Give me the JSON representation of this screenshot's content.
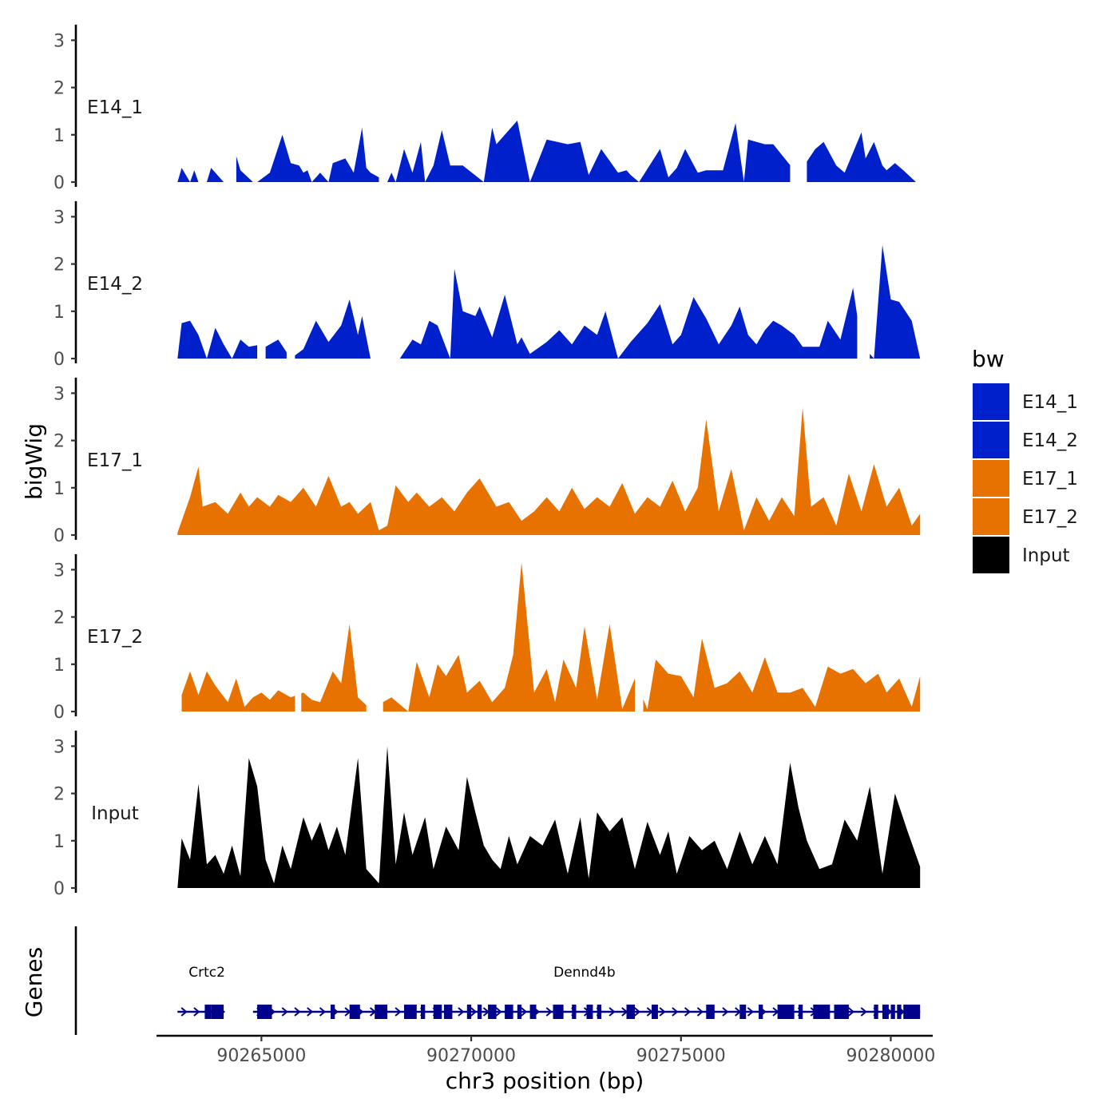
{
  "chart_data": {
    "type": "area",
    "ylabel": "bigWig",
    "xlabel": "chr3 position (bp)",
    "genes_label": "Genes",
    "xlim": [
      90262500,
      90281000
    ],
    "x_ticks": [
      90265000,
      90270000,
      90275000,
      90280000
    ],
    "x_tick_labels": [
      "90265000",
      "90270000",
      "90275000",
      "90280000"
    ],
    "ylim": [
      0,
      3.3
    ],
    "y_ticks": [
      0,
      1,
      2,
      3
    ],
    "y_tick_labels": [
      "0",
      "1",
      "2",
      "3"
    ],
    "legend": {
      "title": "bw",
      "entries": [
        {
          "name": "E14_1",
          "color": "#0020CC"
        },
        {
          "name": "E14_2",
          "color": "#0020CC"
        },
        {
          "name": "E17_1",
          "color": "#E87200"
        },
        {
          "name": "E17_2",
          "color": "#E87200"
        },
        {
          "name": "Input",
          "color": "#000000"
        }
      ]
    },
    "series": [
      {
        "name": "E14_1",
        "color": "#0020CC",
        "x": [
          90263000,
          90263100,
          90263300,
          90263400,
          90263500,
          90263700,
          90263800,
          90264100,
          90264300,
          90264500,
          90264800,
          90264900,
          90265200,
          90265500,
          90265700,
          90265900,
          90266000,
          90266100,
          90266200,
          90266300,
          90266400,
          90266600,
          90266700,
          90267000,
          90267200,
          90267400,
          90267500,
          90267600,
          90268000,
          90268100,
          90268200,
          90268400,
          90268600,
          90268800,
          90268900,
          90269100,
          90269300,
          90269500,
          90269800,
          90270300,
          90270500,
          90270600,
          90271100,
          90271400,
          90271800,
          90272300,
          90272600,
          90272800,
          90273100,
          90273500,
          90273700,
          90273800,
          90274000,
          90274500,
          90274700,
          90274900,
          90275100,
          90275400,
          90275600,
          90276000,
          90276300,
          90276500,
          90276600,
          90277000,
          90277200,
          90277700,
          90277900,
          90278200,
          90278400,
          90278700,
          90278900,
          90279300,
          90279400,
          90279600,
          90279800,
          90279900,
          90280100,
          90280300,
          90280600,
          90280800
        ],
        "y": [
          0,
          0.3,
          0,
          0.25,
          0,
          0,
          0.3,
          0,
          0.85,
          0.25,
          0,
          0,
          0.2,
          1.0,
          0.4,
          0.35,
          0.2,
          0.25,
          0,
          0.1,
          0.2,
          0,
          0.4,
          0.5,
          0.2,
          1.15,
          0.3,
          0.2,
          0,
          0.2,
          0,
          0.7,
          0.2,
          0.85,
          0,
          0.35,
          1.1,
          0.35,
          0.35,
          0,
          1.15,
          0.8,
          1.3,
          0,
          0.9,
          0.8,
          0.85,
          0.15,
          0.7,
          0.2,
          0.25,
          0.15,
          0,
          0.7,
          0.1,
          0.3,
          0.7,
          0.2,
          0.25,
          0.25,
          1.25,
          0,
          0.9,
          0.8,
          0.8,
          0.25,
          0.3,
          0.7,
          0.85,
          0.35,
          0.2,
          1.05,
          0.5,
          0.85,
          0.35,
          0.25,
          0.4,
          0.25,
          0,
          0
        ],
        "gaps": [
          [
            90264100,
            90264400
          ],
          [
            90267800,
            90268000
          ],
          [
            90277600,
            90278000
          ]
        ]
      },
      {
        "name": "E14_2",
        "color": "#0020CC",
        "x": [
          90263000,
          90263100,
          90263300,
          90263500,
          90263700,
          90263900,
          90264100,
          90264300,
          90264500,
          90264700,
          90265000,
          90265100,
          90265400,
          90265700,
          90266000,
          90266300,
          90266600,
          90266900,
          90267100,
          90267300,
          90267400,
          90267600,
          90268300,
          90268600,
          90268800,
          90269000,
          90269200,
          90269500,
          90269600,
          90269800,
          90270100,
          90270200,
          90270500,
          90270800,
          90271100,
          90271200,
          90271400,
          90271800,
          90272100,
          90272400,
          90272700,
          90273000,
          90273200,
          90273500,
          90273800,
          90274200,
          90274500,
          90274800,
          90275000,
          90275300,
          90275600,
          90275900,
          90276200,
          90276400,
          90276600,
          90276800,
          90277000,
          90277200,
          90277400,
          90277700,
          90277900,
          90278300,
          90278500,
          90278800,
          90279100,
          90279300,
          90279600,
          90279800,
          90280000,
          90280200,
          90280500,
          90280700
        ],
        "y": [
          0,
          0.75,
          0.8,
          0.5,
          0,
          0.65,
          0.3,
          0,
          0.4,
          0.25,
          0.3,
          0.25,
          0.4,
          0,
          0.2,
          0.8,
          0.35,
          0.7,
          1.25,
          0.5,
          0.9,
          0,
          0,
          0.4,
          0.3,
          0.8,
          0.7,
          0,
          1.9,
          1.0,
          0.9,
          1.1,
          0.45,
          1.35,
          0.3,
          0.45,
          0.1,
          0.35,
          0.6,
          0.3,
          0.7,
          0.5,
          1.0,
          0,
          0.35,
          0.75,
          1.15,
          0.3,
          0.5,
          1.3,
          0.85,
          0.3,
          0.7,
          1.1,
          0.5,
          0.3,
          0.6,
          0.8,
          0.7,
          0.5,
          0.25,
          0.25,
          0.8,
          0.4,
          1.5,
          0.3,
          0,
          2.4,
          1.25,
          1.2,
          0.8,
          0
        ],
        "gaps": [
          [
            90264900,
            90265100
          ],
          [
            90265600,
            90265800
          ],
          [
            90267600,
            90268200
          ],
          [
            90279200,
            90279500
          ]
        ]
      },
      {
        "name": "E17_1",
        "color": "#E87200",
        "x": [
          90263000,
          90263300,
          90263500,
          90263600,
          90263900,
          90264200,
          90264500,
          90264700,
          90264900,
          90265200,
          90265400,
          90265700,
          90266000,
          90266300,
          90266600,
          90266900,
          90267100,
          90267300,
          90267600,
          90267800,
          90268000,
          90268200,
          90268500,
          90268700,
          90269000,
          90269300,
          90269600,
          90269900,
          90270200,
          90270600,
          90270900,
          90271200,
          90271500,
          90271800,
          90272100,
          90272400,
          90272700,
          90273000,
          90273300,
          90273600,
          90273900,
          90274200,
          90274500,
          90274800,
          90275100,
          90275400,
          90275600,
          90275900,
          90276200,
          90276500,
          90276800,
          90277100,
          90277400,
          90277700,
          90277900,
          90278100,
          90278400,
          90278700,
          90279000,
          90279300,
          90279600,
          90279900,
          90280200,
          90280500,
          90280700
        ],
        "y": [
          0.05,
          0.8,
          1.45,
          0.6,
          0.7,
          0.45,
          0.9,
          0.6,
          0.8,
          0.6,
          0.85,
          0.7,
          1.0,
          0.6,
          1.25,
          0.6,
          0.7,
          0.45,
          0.7,
          0.1,
          0.2,
          1.05,
          0.7,
          0.9,
          0.6,
          0.8,
          0.5,
          0.9,
          1.2,
          0.6,
          0.7,
          0.3,
          0.5,
          0.8,
          0.5,
          1.0,
          0.55,
          0.8,
          0.6,
          1.1,
          0.45,
          0.8,
          0.6,
          1.15,
          0.5,
          1.0,
          2.45,
          0.5,
          1.4,
          0.1,
          0.8,
          0.3,
          0.8,
          0.4,
          2.7,
          0.6,
          0.8,
          0.2,
          1.3,
          0.5,
          1.5,
          0.6,
          1.0,
          0.2,
          0.45
        ],
        "gaps": []
      },
      {
        "name": "E17_2",
        "color": "#E87200",
        "x": [
          90263100,
          90263300,
          90263500,
          90263700,
          90263900,
          90264200,
          90264400,
          90264600,
          90264800,
          90265000,
          90265200,
          90265400,
          90265700,
          90266000,
          90266200,
          90266400,
          90266700,
          90266900,
          90267100,
          90267300,
          90267600,
          90268100,
          90268500,
          90268700,
          90269000,
          90269200,
          90269400,
          90269700,
          90269900,
          90270200,
          90270500,
          90270800,
          90271000,
          90271200,
          90271500,
          90271800,
          90272000,
          90272200,
          90272500,
          90272700,
          90273000,
          90273300,
          90273600,
          90273900,
          90274200,
          90274400,
          90274700,
          90275000,
          90275300,
          90275500,
          90275800,
          90276100,
          90276400,
          90276700,
          90277000,
          90277300,
          90277600,
          90277900,
          90278200,
          90278500,
          90278800,
          90279100,
          90279400,
          90279700,
          90279900,
          90280200,
          90280500,
          90280700
        ],
        "y": [
          0.35,
          0.85,
          0.35,
          0.85,
          0.55,
          0.2,
          0.7,
          0.1,
          0.3,
          0.4,
          0.25,
          0.45,
          0.3,
          0.4,
          0.25,
          0.2,
          0.85,
          0.6,
          1.85,
          0.3,
          0.05,
          0.3,
          0,
          1.05,
          0.3,
          1.0,
          0.75,
          1.2,
          0.4,
          0.65,
          0.2,
          0.5,
          1.2,
          3.15,
          0.4,
          0.9,
          0.2,
          1.1,
          0.5,
          1.8,
          0.25,
          1.85,
          0.05,
          0.7,
          0.05,
          1.1,
          0.8,
          0.75,
          0.3,
          1.55,
          0.5,
          0.6,
          0.85,
          0.4,
          1.15,
          0.4,
          0.4,
          0.5,
          0.1,
          0.95,
          0.8,
          0.9,
          0.6,
          0.8,
          0.4,
          0.7,
          0.1,
          0.75
        ],
        "gaps": [
          [
            90265800,
            90265950
          ],
          [
            90267500,
            90267900
          ],
          [
            90273900,
            90274100
          ]
        ]
      },
      {
        "name": "Input",
        "color": "#000000",
        "x": [
          90263000,
          90263100,
          90263300,
          90263500,
          90263700,
          90263900,
          90264100,
          90264300,
          90264500,
          90264700,
          90264900,
          90265100,
          90265300,
          90265500,
          90265700,
          90266000,
          90266200,
          90266400,
          90266600,
          90266800,
          90267000,
          90267300,
          90267500,
          90267800,
          90268000,
          90268200,
          90268400,
          90268600,
          90268900,
          90269100,
          90269400,
          90269700,
          90269900,
          90270100,
          90270300,
          90270500,
          90270700,
          90270900,
          90271100,
          90271400,
          90271700,
          90272000,
          90272300,
          90272600,
          90272800,
          90273000,
          90273300,
          90273600,
          90273900,
          90274200,
          90274500,
          90274700,
          90274900,
          90275200,
          90275500,
          90275800,
          90276100,
          90276400,
          90276700,
          90277000,
          90277300,
          90277600,
          90277800,
          90278000,
          90278300,
          90278600,
          90278900,
          90279200,
          90279500,
          90279800,
          90280100,
          90280400,
          90280700
        ],
        "y": [
          0,
          1.05,
          0.6,
          2.2,
          0.5,
          0.7,
          0.3,
          0.9,
          0.25,
          2.75,
          2.15,
          0.6,
          0.1,
          0.9,
          0.4,
          1.5,
          1.0,
          1.4,
          0.8,
          1.3,
          0.7,
          2.75,
          0.4,
          0.1,
          3.0,
          0.5,
          1.6,
          0.7,
          1.5,
          0.4,
          1.3,
          0.8,
          2.35,
          1.6,
          0.9,
          0.6,
          0.4,
          1.1,
          0.5,
          1.1,
          0.9,
          1.45,
          0.3,
          1.5,
          0.2,
          1.6,
          1.2,
          1.5,
          0.4,
          1.4,
          0.7,
          1.2,
          0.3,
          1.1,
          0.8,
          1.0,
          0.4,
          1.2,
          0.5,
          1.1,
          0.5,
          2.65,
          1.7,
          1.0,
          0.4,
          0.5,
          1.45,
          1.0,
          2.15,
          0.3,
          2.0,
          1.2,
          0.45
        ],
        "gaps": []
      }
    ],
    "genes": [
      {
        "name": "Crtc2",
        "start": 90263000,
        "end": 90264100,
        "label_x": 90263700,
        "exons": [
          [
            90263800,
            90264100
          ],
          [
            90263650,
            90263800
          ]
        ]
      },
      {
        "name": "Dennd4b",
        "start": 90264800,
        "end": 90280700,
        "label_x": 90272700,
        "exons": [
          [
            90264900,
            90265250
          ],
          [
            90266650,
            90266750
          ],
          [
            90267100,
            90267350
          ],
          [
            90267700,
            90268000
          ],
          [
            90268400,
            90268700
          ],
          [
            90268800,
            90268900
          ],
          [
            90269100,
            90269300
          ],
          [
            90269350,
            90269550
          ],
          [
            90269900,
            90270000
          ],
          [
            90270150,
            90270250
          ],
          [
            90270400,
            90270600
          ],
          [
            90270800,
            90271000
          ],
          [
            90271100,
            90271200
          ],
          [
            90271400,
            90271550
          ],
          [
            90271950,
            90272200
          ],
          [
            90272400,
            90272500
          ],
          [
            90272750,
            90272900
          ],
          [
            90273000,
            90273100
          ],
          [
            90273700,
            90273900
          ],
          [
            90274300,
            90274450
          ],
          [
            90275600,
            90275800
          ],
          [
            90276400,
            90276550
          ],
          [
            90276850,
            90276950
          ],
          [
            90277300,
            90277700
          ],
          [
            90277800,
            90277900
          ],
          [
            90278150,
            90278550
          ],
          [
            90278650,
            90279000
          ],
          [
            90279600,
            90279700
          ],
          [
            90279800,
            90279950
          ],
          [
            90280000,
            90280100
          ],
          [
            90280150,
            90280250
          ],
          [
            90280300,
            90280700
          ]
        ]
      }
    ]
  }
}
